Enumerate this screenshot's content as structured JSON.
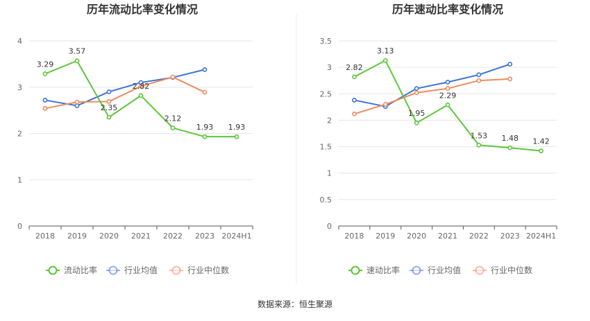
{
  "source_label": "数据来源：恒生聚源",
  "chart_data": [
    {
      "type": "line",
      "title": "历年流动比率变化情况",
      "categories": [
        "2018",
        "2019",
        "2020",
        "2021",
        "2022",
        "2023",
        "2024H1"
      ],
      "ylim": [
        0,
        4
      ],
      "yticks": [
        "0",
        "1",
        "2",
        "3",
        "4"
      ],
      "grid": true,
      "legend_position": "bottom-center",
      "series": [
        {
          "name": "流动比率",
          "color": "#5ec63a",
          "values": [
            3.29,
            3.57,
            2.35,
            2.82,
            2.12,
            1.93,
            1.93
          ],
          "labels": [
            "3.29",
            "3.57",
            "2.35",
            "2.82",
            "2.12",
            "1.93",
            "1.93"
          ]
        },
        {
          "name": "行业均值",
          "color": "#3c72d6",
          "values": [
            2.72,
            2.6,
            2.9,
            3.1,
            3.21,
            3.38,
            null
          ]
        },
        {
          "name": "行业中位数",
          "color": "#f08a5d",
          "values": [
            2.54,
            2.68,
            2.69,
            3.02,
            3.22,
            2.89,
            null
          ]
        }
      ]
    },
    {
      "type": "line",
      "title": "历年速动比率变化情况",
      "categories": [
        "2018",
        "2019",
        "2020",
        "2021",
        "2022",
        "2023",
        "2024H1"
      ],
      "ylim": [
        0,
        3.5
      ],
      "yticks": [
        "0",
        "0.5",
        "1",
        "1.5",
        "2",
        "2.5",
        "3",
        "3.5"
      ],
      "grid": true,
      "legend_position": "bottom-center",
      "series": [
        {
          "name": "速动比率",
          "color": "#5ec63a",
          "values": [
            2.82,
            3.13,
            1.95,
            2.29,
            1.53,
            1.48,
            1.42
          ],
          "labels": [
            "2.82",
            "3.13",
            "1.95",
            "2.29",
            "1.53",
            "1.48",
            "1.42"
          ]
        },
        {
          "name": "行业均值",
          "color": "#3c72d6",
          "values": [
            2.38,
            2.26,
            2.6,
            2.72,
            2.86,
            3.06,
            null
          ]
        },
        {
          "name": "行业中位数",
          "color": "#f08a5d",
          "values": [
            2.12,
            2.3,
            2.52,
            2.6,
            2.75,
            2.78,
            null
          ]
        }
      ]
    }
  ]
}
